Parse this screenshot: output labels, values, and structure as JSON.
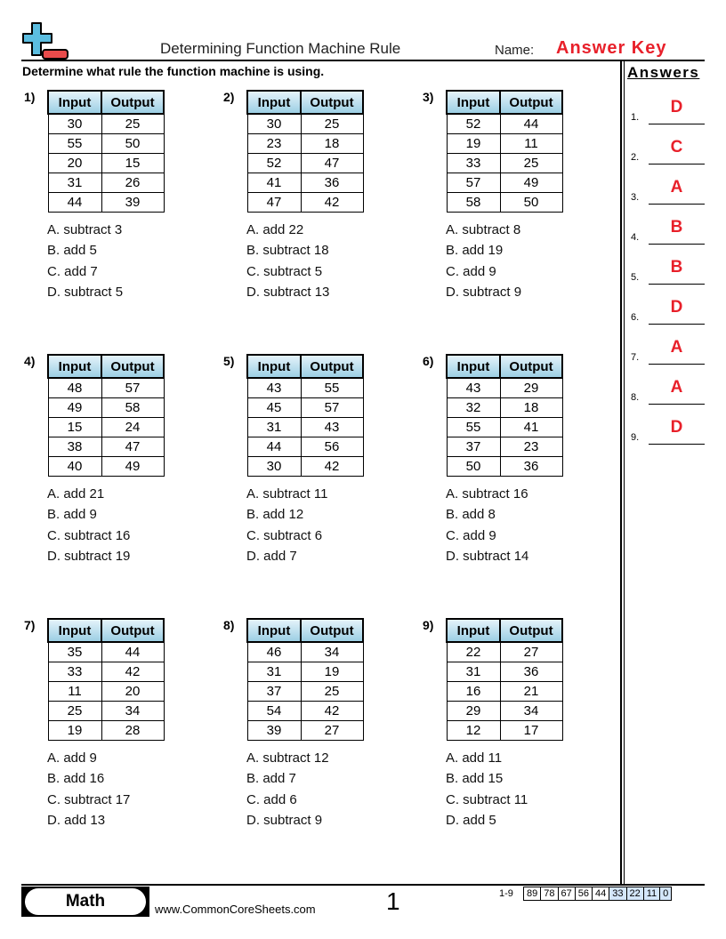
{
  "header": {
    "title": "Determining Function Machine Rule",
    "name_label": "Name:",
    "name_value": "Answer Key"
  },
  "instructions": "Determine what rule the function machine is using.",
  "table_headers": [
    "Input",
    "Output"
  ],
  "problems": [
    {
      "num": "1)",
      "rows": [
        [
          "30",
          "25"
        ],
        [
          "55",
          "50"
        ],
        [
          "20",
          "15"
        ],
        [
          "31",
          "26"
        ],
        [
          "44",
          "39"
        ]
      ],
      "choices": [
        "A. subtract 3",
        "B. add 5",
        "C. add 7",
        "D. subtract 5"
      ]
    },
    {
      "num": "2)",
      "rows": [
        [
          "30",
          "25"
        ],
        [
          "23",
          "18"
        ],
        [
          "52",
          "47"
        ],
        [
          "41",
          "36"
        ],
        [
          "47",
          "42"
        ]
      ],
      "choices": [
        "A. add 22",
        "B. subtract 18",
        "C. subtract 5",
        "D. subtract 13"
      ]
    },
    {
      "num": "3)",
      "rows": [
        [
          "52",
          "44"
        ],
        [
          "19",
          "11"
        ],
        [
          "33",
          "25"
        ],
        [
          "57",
          "49"
        ],
        [
          "58",
          "50"
        ]
      ],
      "choices": [
        "A. subtract 8",
        "B. add 19",
        "C. add 9",
        "D. subtract 9"
      ]
    },
    {
      "num": "4)",
      "rows": [
        [
          "48",
          "57"
        ],
        [
          "49",
          "58"
        ],
        [
          "15",
          "24"
        ],
        [
          "38",
          "47"
        ],
        [
          "40",
          "49"
        ]
      ],
      "choices": [
        "A. add 21",
        "B. add 9",
        "C. subtract 16",
        "D. subtract 19"
      ]
    },
    {
      "num": "5)",
      "rows": [
        [
          "43",
          "55"
        ],
        [
          "45",
          "57"
        ],
        [
          "31",
          "43"
        ],
        [
          "44",
          "56"
        ],
        [
          "30",
          "42"
        ]
      ],
      "choices": [
        "A. subtract 11",
        "B. add 12",
        "C. subtract 6",
        "D. add 7"
      ]
    },
    {
      "num": "6)",
      "rows": [
        [
          "43",
          "29"
        ],
        [
          "32",
          "18"
        ],
        [
          "55",
          "41"
        ],
        [
          "37",
          "23"
        ],
        [
          "50",
          "36"
        ]
      ],
      "choices": [
        "A. subtract 16",
        "B. add 8",
        "C. add 9",
        "D. subtract 14"
      ]
    },
    {
      "num": "7)",
      "rows": [
        [
          "35",
          "44"
        ],
        [
          "33",
          "42"
        ],
        [
          "11",
          "20"
        ],
        [
          "25",
          "34"
        ],
        [
          "19",
          "28"
        ]
      ],
      "choices": [
        "A. add 9",
        "B. add 16",
        "C. subtract 17",
        "D. add 13"
      ]
    },
    {
      "num": "8)",
      "rows": [
        [
          "46",
          "34"
        ],
        [
          "31",
          "19"
        ],
        [
          "37",
          "25"
        ],
        [
          "54",
          "42"
        ],
        [
          "39",
          "27"
        ]
      ],
      "choices": [
        "A. subtract 12",
        "B. add 7",
        "C. add 6",
        "D. subtract 9"
      ]
    },
    {
      "num": "9)",
      "rows": [
        [
          "22",
          "27"
        ],
        [
          "31",
          "36"
        ],
        [
          "16",
          "21"
        ],
        [
          "29",
          "34"
        ],
        [
          "12",
          "17"
        ]
      ],
      "choices": [
        "A. add 11",
        "B. add 15",
        "C. subtract 11",
        "D. add 5"
      ]
    }
  ],
  "answers": {
    "title": "Answers",
    "items": [
      {
        "num": "1.",
        "value": "D"
      },
      {
        "num": "2.",
        "value": "C"
      },
      {
        "num": "3.",
        "value": "A"
      },
      {
        "num": "4.",
        "value": "B"
      },
      {
        "num": "5.",
        "value": "B"
      },
      {
        "num": "6.",
        "value": "D"
      },
      {
        "num": "7.",
        "value": "A"
      },
      {
        "num": "8.",
        "value": "A"
      },
      {
        "num": "9.",
        "value": "D"
      }
    ]
  },
  "footer": {
    "subject": "Math",
    "website": "www.CommonCoreSheets.com",
    "page": "1",
    "range": "1-9",
    "scores": [
      "89",
      "78",
      "67",
      "56",
      "44",
      "33",
      "22",
      "11",
      "0"
    ],
    "highlight_from_index": 5
  },
  "colors": {
    "accent_red": "#e8202a",
    "header_blue": "#9ccfe4",
    "logo_blue": "#5bbde0",
    "score_highlight": "#d4e6fa"
  }
}
